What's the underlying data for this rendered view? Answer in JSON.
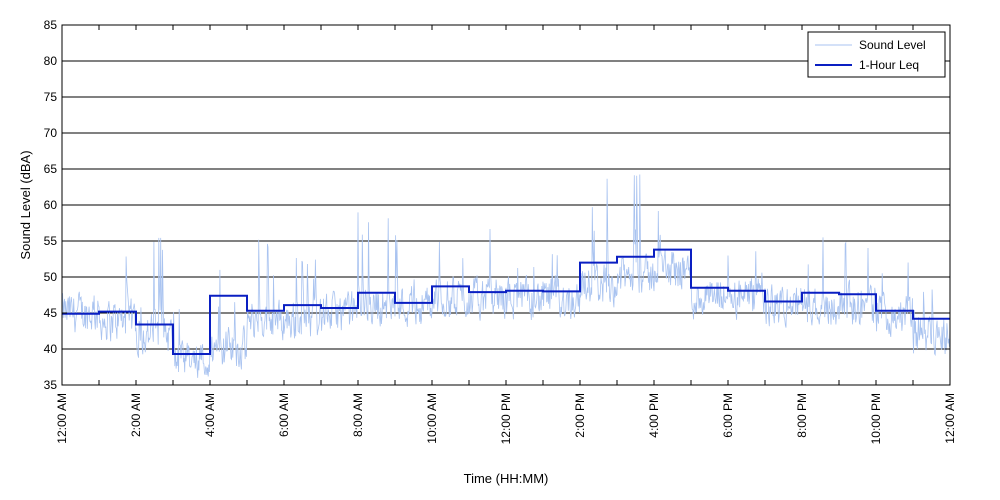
{
  "chart_data": {
    "type": "line",
    "title": "",
    "xlabel": "Time (HH:MM)",
    "ylabel": "Sound Level (dBA)",
    "ylim": [
      35,
      85
    ],
    "xlim_hours": [
      0,
      24
    ],
    "y_ticks": [
      35,
      40,
      45,
      50,
      55,
      60,
      65,
      70,
      75,
      80,
      85
    ],
    "x_ticks": [
      {
        "hour": 0,
        "label": "12:00 AM"
      },
      {
        "hour": 2,
        "label": "2:00 AM"
      },
      {
        "hour": 4,
        "label": "4:00 AM"
      },
      {
        "hour": 6,
        "label": "6:00 AM"
      },
      {
        "hour": 8,
        "label": "8:00 AM"
      },
      {
        "hour": 10,
        "label": "10:00 AM"
      },
      {
        "hour": 12,
        "label": "12:00 PM"
      },
      {
        "hour": 14,
        "label": "2:00 PM"
      },
      {
        "hour": 16,
        "label": "4:00 PM"
      },
      {
        "hour": 18,
        "label": "6:00 PM"
      },
      {
        "hour": 20,
        "label": "8:00 PM"
      },
      {
        "hour": 22,
        "label": "10:00 PM"
      },
      {
        "hour": 24,
        "label": "12:00 AM"
      }
    ],
    "grid": "horizontal",
    "legend_position": "top-right",
    "series": [
      {
        "name": "Sound Level",
        "color": "#a9c3f0",
        "style": "thin-line",
        "values_hourly_typical": [
          45,
          44,
          42,
          38,
          40,
          44,
          44,
          45,
          46,
          46,
          47,
          47,
          47,
          47,
          49,
          50,
          51,
          47,
          47,
          46,
          46,
          46,
          45,
          42
        ],
        "values_hourly_peak": [
          49,
          53,
          56,
          46,
          51,
          56,
          53,
          58,
          59,
          56,
          56,
          57,
          53,
          54,
          64,
          65,
          61,
          55,
          54,
          54,
          56,
          55,
          53,
          49
        ]
      },
      {
        "name": "1-Hour Leq",
        "color": "#0a1fc2",
        "style": "step",
        "hours": [
          0,
          1,
          2,
          3,
          4,
          5,
          6,
          7,
          8,
          9,
          10,
          11,
          12,
          13,
          14,
          15,
          16,
          17,
          18,
          19,
          20,
          21,
          22,
          23
        ],
        "values": [
          44.9,
          45.2,
          43.4,
          39.3,
          47.4,
          45.3,
          46.1,
          45.7,
          47.8,
          46.4,
          48.7,
          47.9,
          48.1,
          48.0,
          52.0,
          52.8,
          53.8,
          48.5,
          48.1,
          46.6,
          47.8,
          47.6,
          45.3,
          44.2
        ]
      }
    ]
  }
}
